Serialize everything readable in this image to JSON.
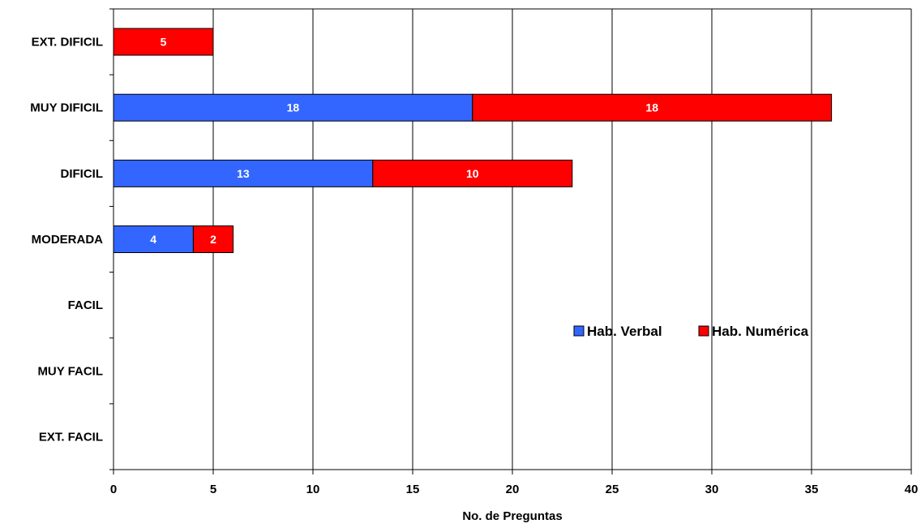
{
  "chart_data": {
    "type": "bar",
    "orientation": "horizontal",
    "stacked": true,
    "categories": [
      "EXT. DIFICIL",
      "MUY DIFICIL",
      "DIFICIL",
      "MODERADA",
      "FACIL",
      "MUY FACIL",
      "EXT. FACIL"
    ],
    "series": [
      {
        "name": "Hab. Verbal",
        "color": "#3366ff",
        "values": [
          0,
          18,
          13,
          4,
          0,
          0,
          0
        ]
      },
      {
        "name": "Hab. Numérica",
        "color": "#ff0000",
        "values": [
          5,
          18,
          10,
          2,
          0,
          0,
          0
        ]
      }
    ],
    "xlabel": "No. de Preguntas",
    "ylabel": "",
    "xlim": [
      0,
      40
    ],
    "xticks": [
      0,
      5,
      10,
      15,
      20,
      25,
      30,
      35,
      40
    ],
    "grid": "vertical",
    "legend_position": "right-middle"
  }
}
